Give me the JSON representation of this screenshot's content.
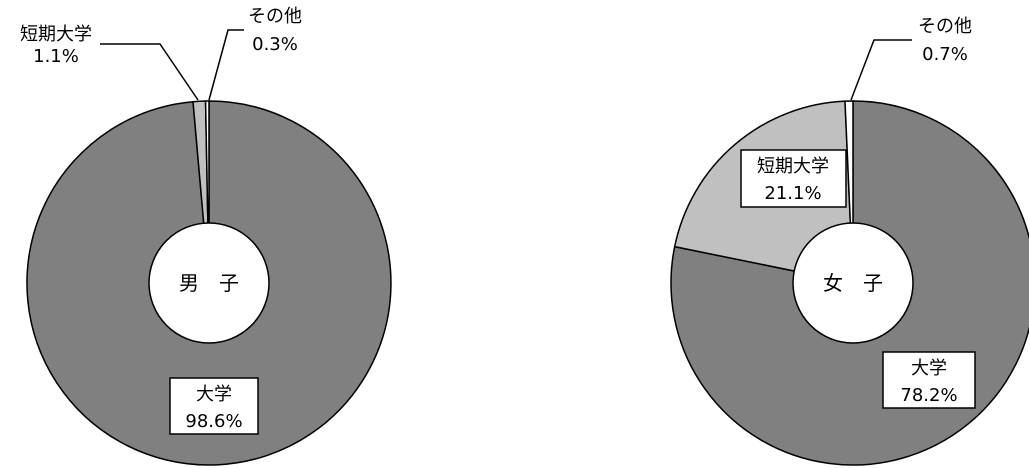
{
  "chart_data": [
    {
      "type": "pie",
      "center_label": "男　子",
      "categories": [
        "大学",
        "短期大学",
        "その他"
      ],
      "values": [
        98.6,
        1.1,
        0.3
      ],
      "labels": [
        "98.6%",
        "1.1%",
        "0.3%"
      ],
      "colors": [
        "#808080",
        "#c0c0c0",
        "#ffffff"
      ]
    },
    {
      "type": "pie",
      "center_label": "女　子",
      "categories": [
        "大学",
        "短期大学",
        "その他"
      ],
      "values": [
        78.2,
        21.1,
        0.7
      ],
      "labels": [
        "78.2%",
        "21.1%",
        "0.7%"
      ],
      "colors": [
        "#808080",
        "#c0c0c0",
        "#ffffff"
      ]
    }
  ]
}
